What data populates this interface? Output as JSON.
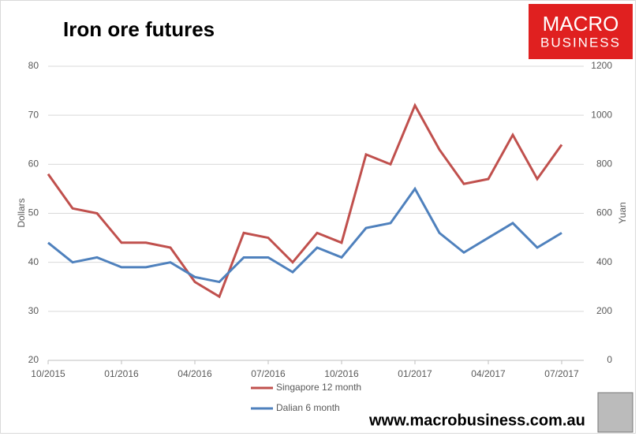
{
  "chart_data": {
    "type": "line",
    "title": "Iron ore futures",
    "ylabel": "Dollars",
    "y2label": "Yuan",
    "x": [
      "10/2015",
      null,
      null,
      "01/2016",
      null,
      null,
      "04/2016",
      null,
      null,
      "07/2016",
      null,
      null,
      "10/2016",
      null,
      null,
      "01/2017",
      null,
      null,
      "04/2017",
      null,
      null,
      "07/2017"
    ],
    "series": [
      {
        "name": "Singapore 12 month",
        "color": "#c0504d",
        "values": [
          58,
          51,
          50,
          44,
          44,
          43,
          36,
          33,
          46,
          45,
          40,
          46,
          44,
          62,
          60,
          72,
          63,
          56,
          57,
          66,
          57,
          64
        ]
      },
      {
        "name": "Dalian 6 month",
        "color": "#4f81bd",
        "axis": "y2",
        "values": [
          480,
          400,
          420,
          380,
          380,
          400,
          340,
          320,
          420,
          420,
          360,
          460,
          420,
          540,
          560,
          700,
          520,
          440,
          500,
          560,
          460,
          520
        ]
      }
    ],
    "ylim": [
      20,
      80
    ],
    "yticks": [
      20,
      30,
      40,
      50,
      60,
      70,
      80
    ],
    "y2lim": [
      0,
      1200
    ],
    "y2ticks": [
      0,
      200,
      400,
      600,
      800,
      1000,
      1200
    ],
    "grid": true,
    "legend": "bottom"
  },
  "branding": {
    "logo_top": "MACRO",
    "logo_bottom": "BUSINESS",
    "url": "www.macrobusiness.com.au"
  }
}
